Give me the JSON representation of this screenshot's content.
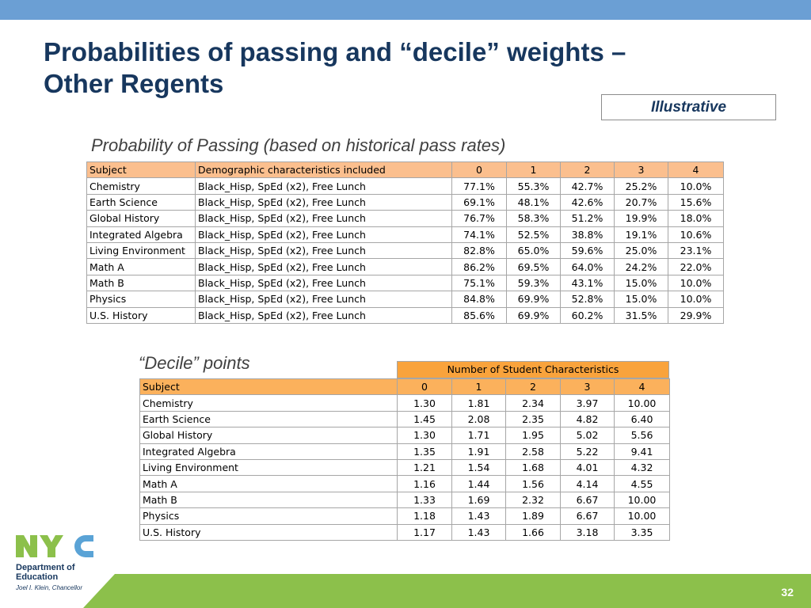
{
  "slide": {
    "title_line1": "Probabilities of passing and “decile” weights –",
    "title_line2": "Other Regents",
    "badge": "Illustrative",
    "page_number": "32"
  },
  "probability": {
    "caption": "Probability of Passing (based on historical pass rates)",
    "headers": [
      "Subject",
      "Demographic characteristics included",
      "0",
      "1",
      "2",
      "3",
      "4"
    ],
    "rows": [
      [
        "Chemistry",
        "Black_Hisp, SpEd (x2), Free Lunch",
        "77.1%",
        "55.3%",
        "42.7%",
        "25.2%",
        "10.0%"
      ],
      [
        "Earth Science",
        "Black_Hisp, SpEd (x2), Free Lunch",
        "69.1%",
        "48.1%",
        "42.6%",
        "20.7%",
        "15.6%"
      ],
      [
        "Global History",
        "Black_Hisp, SpEd (x2), Free Lunch",
        "76.7%",
        "58.3%",
        "51.2%",
        "19.9%",
        "18.0%"
      ],
      [
        "Integrated Algebra",
        "Black_Hisp, SpEd (x2), Free Lunch",
        "74.1%",
        "52.5%",
        "38.8%",
        "19.1%",
        "10.6%"
      ],
      [
        "Living Environment",
        "Black_Hisp, SpEd (x2), Free Lunch",
        "82.8%",
        "65.0%",
        "59.6%",
        "25.0%",
        "23.1%"
      ],
      [
        "Math A",
        "Black_Hisp, SpEd (x2), Free Lunch",
        "86.2%",
        "69.5%",
        "64.0%",
        "24.2%",
        "22.0%"
      ],
      [
        "Math B",
        "Black_Hisp, SpEd (x2), Free Lunch",
        "75.1%",
        "59.3%",
        "43.1%",
        "15.0%",
        "10.0%"
      ],
      [
        "Physics",
        "Black_Hisp, SpEd (x2), Free Lunch",
        "84.8%",
        "69.9%",
        "52.8%",
        "15.0%",
        "10.0%"
      ],
      [
        "U.S. History",
        "Black_Hisp, SpEd (x2), Free Lunch",
        "85.6%",
        "69.9%",
        "60.2%",
        "31.5%",
        "29.9%"
      ]
    ]
  },
  "decile": {
    "caption": "“Decile” points",
    "group_header": "Number of Student Characteristics",
    "headers": [
      "Subject",
      "0",
      "1",
      "2",
      "3",
      "4"
    ],
    "rows": [
      [
        "Chemistry",
        "1.30",
        "1.81",
        "2.34",
        "3.97",
        "10.00"
      ],
      [
        "Earth Science",
        "1.45",
        "2.08",
        "2.35",
        "4.82",
        "6.40"
      ],
      [
        "Global History",
        "1.30",
        "1.71",
        "1.95",
        "5.02",
        "5.56"
      ],
      [
        "Integrated Algebra",
        "1.35",
        "1.91",
        "2.58",
        "5.22",
        "9.41"
      ],
      [
        "Living Environment",
        "1.21",
        "1.54",
        "1.68",
        "4.01",
        "4.32"
      ],
      [
        "Math A",
        "1.16",
        "1.44",
        "1.56",
        "4.14",
        "4.55"
      ],
      [
        "Math B",
        "1.33",
        "1.69",
        "2.32",
        "6.67",
        "10.00"
      ],
      [
        "Physics",
        "1.18",
        "1.43",
        "1.89",
        "6.67",
        "10.00"
      ],
      [
        "U.S. History",
        "1.17",
        "1.43",
        "1.66",
        "3.18",
        "3.35"
      ]
    ]
  },
  "logo": {
    "text": "NYC",
    "line1": "Department of",
    "line2": "Education",
    "sub": "Joel I. Klein, Chancellor"
  },
  "colors": {
    "top_bar": "#6b9fd4",
    "title": "#17375e",
    "table_header": "#fbbf8e",
    "decile_group_header": "#f9a33c",
    "bottom_bar": "#8cc04b",
    "logo_green": "#8cc04b",
    "logo_blue": "#5aa3d6"
  }
}
